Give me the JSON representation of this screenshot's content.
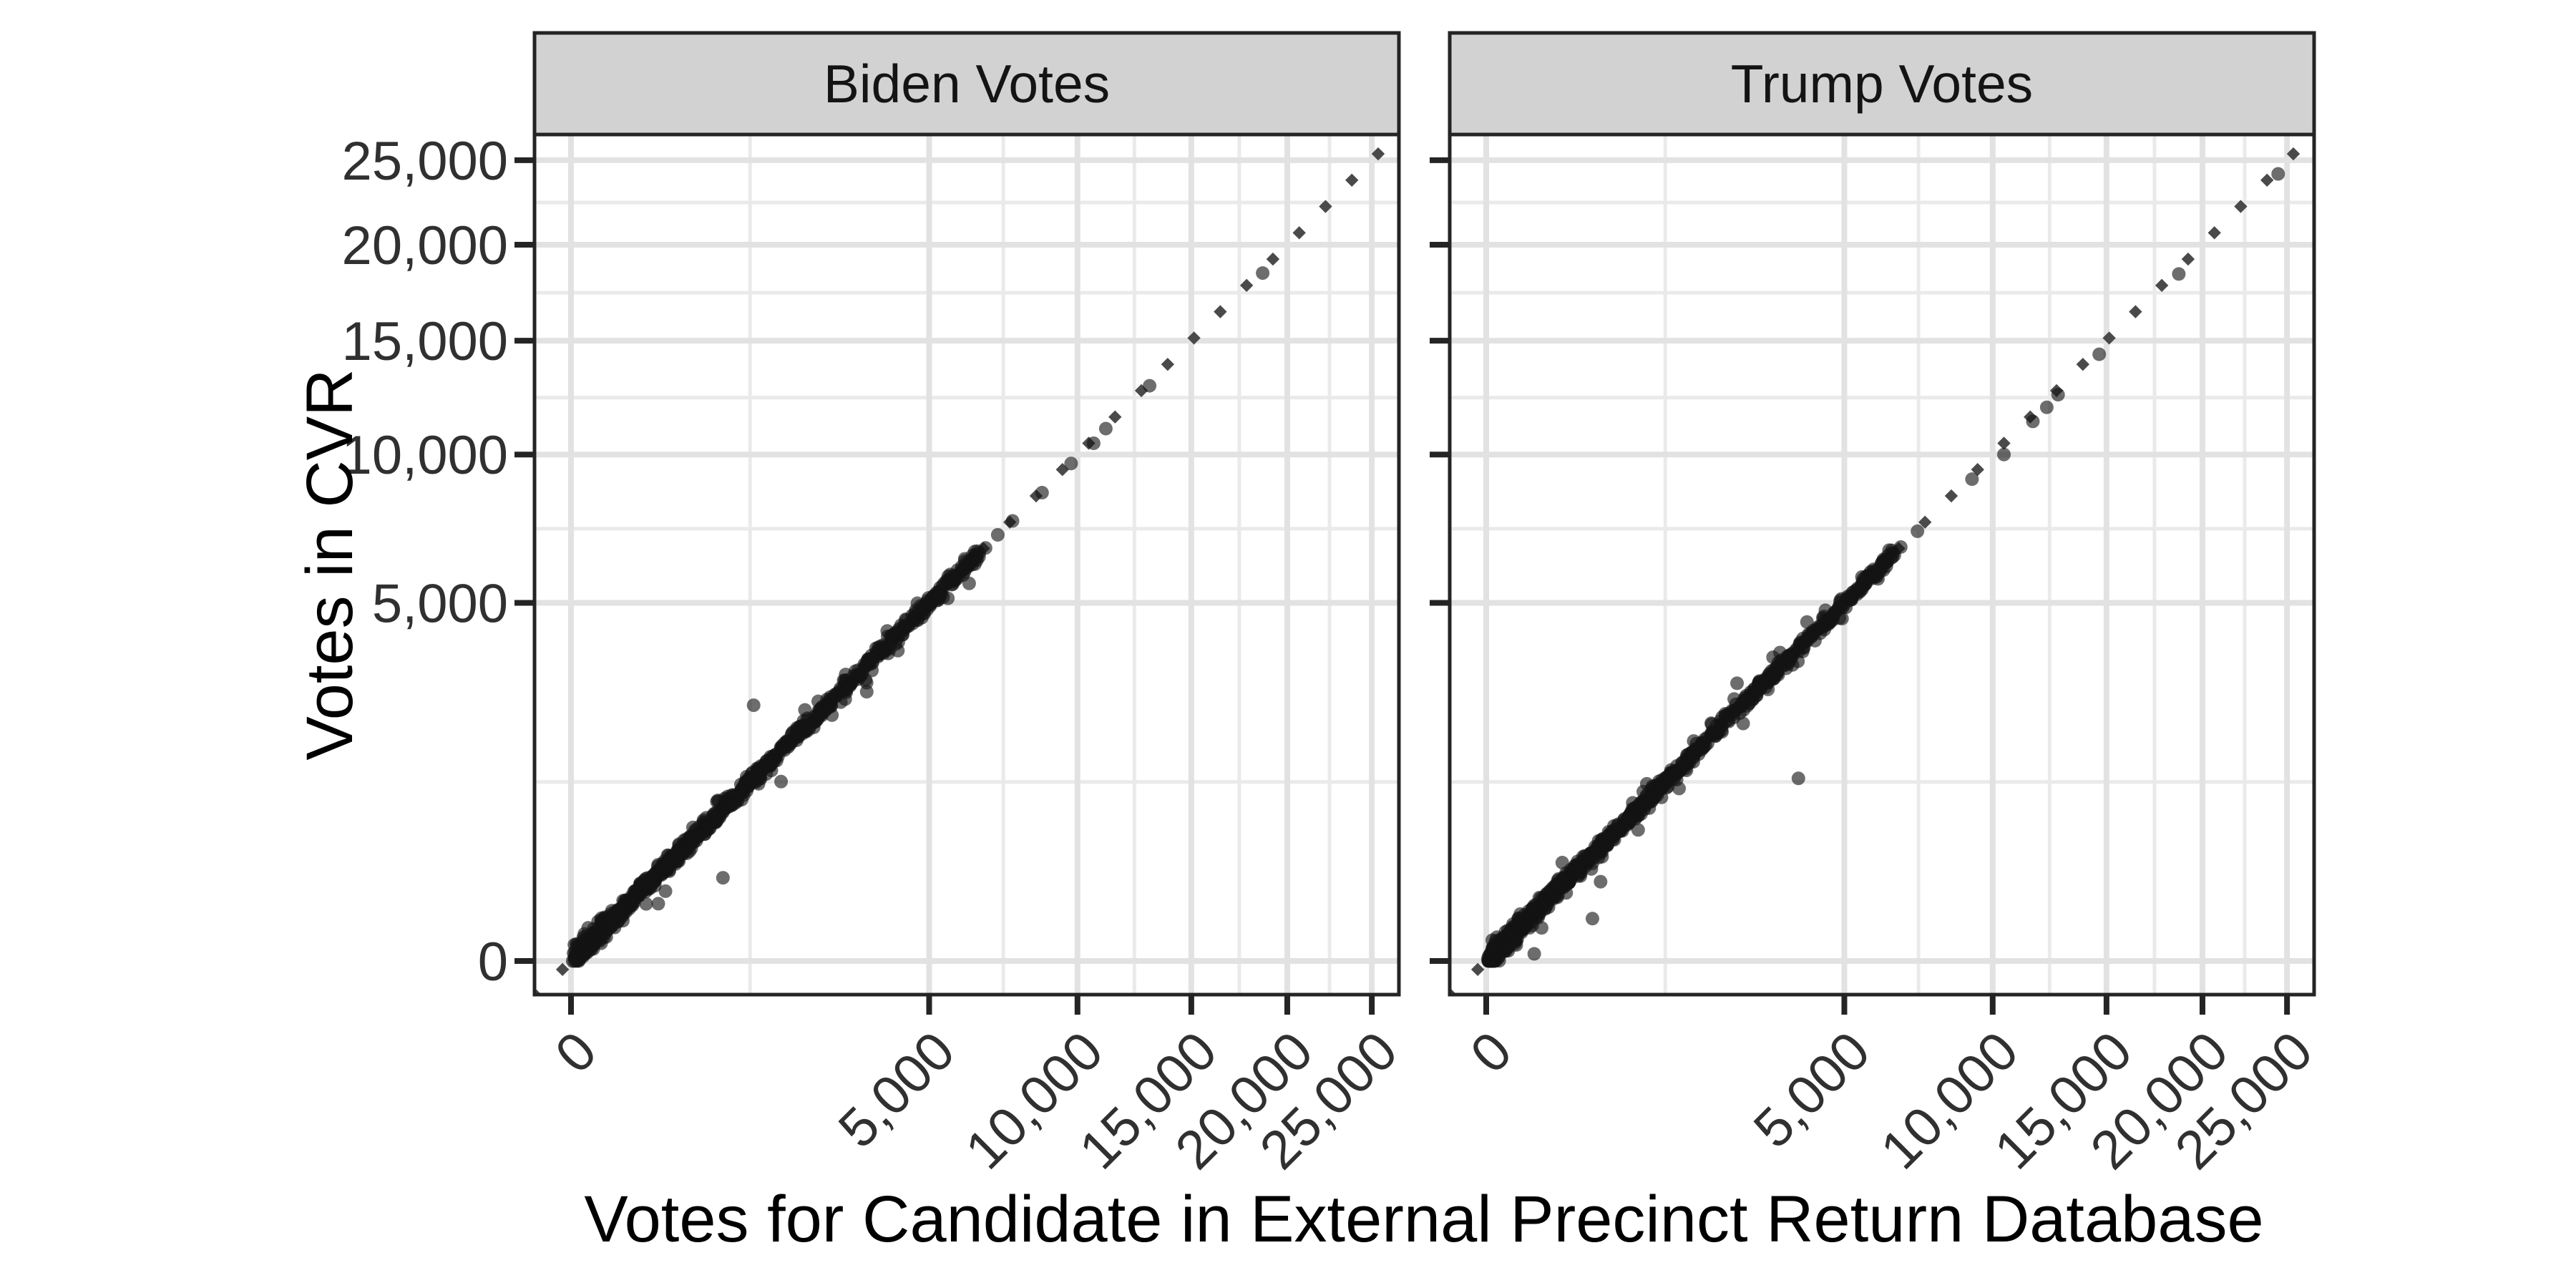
{
  "figure": {
    "x_axis_title": "Votes for Candidate in External Precinct Return Database",
    "y_axis_title": "Votes in CVR",
    "tick_values": [
      0,
      5000,
      10000,
      15000,
      20000,
      25000
    ],
    "tick_labels": [
      "0",
      "5,000",
      "10,000",
      "15,000",
      "20,000",
      "25,000"
    ],
    "axis_scale": "sqrt",
    "axis_range": [
      0,
      25000
    ],
    "grid": "on",
    "legend": "none"
  },
  "colors": {
    "background": "#FFFFFF",
    "panel_fill": "#FFFFFF",
    "panel_border": "#242424",
    "strip_fill": "#D2D2D2",
    "strip_border": "#242424",
    "grid_major": "#E2E2E2",
    "grid_minor": "#EAEAEA",
    "tick_mark": "#242424",
    "tick_text": "#303030",
    "point": "#141414",
    "reference_line": "#4A4A4A"
  },
  "chart_data": [
    {
      "type": "scatter",
      "title": "Biden Votes",
      "xlabel": "Votes for Candidate in External Precinct Return Database",
      "ylabel": "Votes in CVR",
      "x_scale": "sqrt",
      "y_scale": "sqrt",
      "xlim": [
        0,
        25000
      ],
      "ylim": [
        0,
        25000
      ],
      "reference_line": {
        "slope": 1,
        "intercept": 0,
        "style": "dotted"
      },
      "dense_band": {
        "description": "hundreds of precinct points lying on y=x from 0 to ~6500 votes, overlapping into a solid band",
        "x_min": 0,
        "x_max": 6500,
        "n_core": 640,
        "n_low": 260,
        "n_origin": 130,
        "n_fringe": 48,
        "jitter_sd_sqrt": 0.7,
        "fringe_sd_sqrt": 2.2,
        "seed": 42
      },
      "points_on_line": [
        [
          6700,
          6650
        ],
        [
          7100,
          7080
        ],
        [
          7600,
          7550
        ],
        [
          8650,
          8550
        ],
        [
          9750,
          9650
        ],
        [
          10650,
          10450
        ],
        [
          11150,
          11050
        ],
        [
          13050,
          12900
        ],
        [
          18650,
          18450
        ]
      ],
      "outliers": [
        [
          1300,
          2550
        ],
        [
          900,
          270
        ],
        [
          348,
          190
        ],
        [
          297,
          128
        ],
        [
          220,
          127
        ]
      ]
    },
    {
      "type": "scatter",
      "title": "Trump Votes",
      "xlabel": "Votes for Candidate in External Precinct Return Database",
      "ylabel": "Votes in CVR",
      "x_scale": "sqrt",
      "y_scale": "sqrt",
      "xlim": [
        0,
        25000
      ],
      "ylim": [
        0,
        25000
      ],
      "reference_line": {
        "slope": 1,
        "intercept": 0,
        "style": "dotted"
      },
      "dense_band": {
        "description": "hundreds of precinct points lying on y=x from 0 to ~6500 votes, overlapping into a solid band",
        "x_min": 0,
        "x_max": 6500,
        "n_core": 640,
        "n_low": 270,
        "n_origin": 140,
        "n_fringe": 50,
        "jitter_sd_sqrt": 0.7,
        "fringe_sd_sqrt": 2.2,
        "seed": 1337
      },
      "points_on_line": [
        [
          6700,
          6680
        ],
        [
          7250,
          7200
        ],
        [
          9200,
          9050
        ],
        [
          10450,
          10000
        ],
        [
          11650,
          11350
        ],
        [
          12250,
          11950
        ],
        [
          12750,
          12500
        ],
        [
          14650,
          14350
        ],
        [
          18700,
          18400
        ],
        [
          24450,
          24150
        ]
      ],
      "outliers": [
        [
          90,
          2
        ],
        [
          440,
          70
        ],
        [
          510,
          245
        ],
        [
          900,
          670
        ],
        [
          1450,
          1160
        ],
        [
          3800,
          1300
        ]
      ]
    }
  ]
}
